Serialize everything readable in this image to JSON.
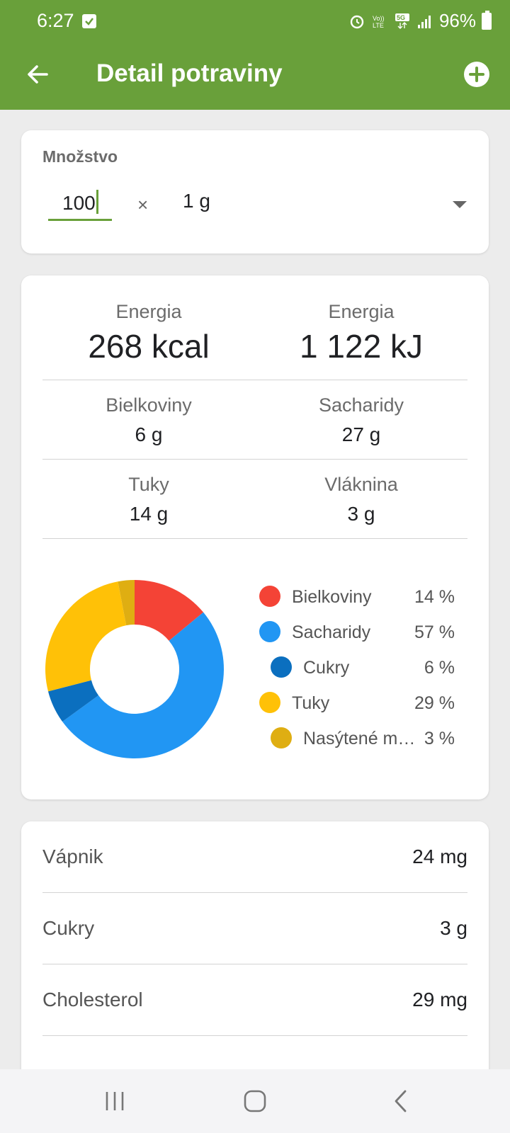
{
  "status": {
    "time": "6:27",
    "battery": "96%"
  },
  "appbar": {
    "title": "Detail potraviny"
  },
  "quantity": {
    "label": "Množstvo",
    "value": "100",
    "times": "×",
    "unit": "1 g"
  },
  "summary": {
    "energy_kcal_label": "Energia",
    "energy_kcal": "268 kcal",
    "energy_kj_label": "Energia",
    "energy_kj": "1 122 kJ",
    "protein_label": "Bielkoviny",
    "protein": "6 g",
    "carbs_label": "Sacharidy",
    "carbs": "27 g",
    "fat_label": "Tuky",
    "fat": "14 g",
    "fiber_label": "Vláknina",
    "fiber": "3 g"
  },
  "legend": [
    {
      "name": "Bielkoviny",
      "pct": "14 %",
      "color": "#f44336",
      "indent": false
    },
    {
      "name": "Sacharidy",
      "pct": "57 %",
      "color": "#2196f3",
      "indent": false
    },
    {
      "name": "Cukry",
      "pct": "6 %",
      "color": "#0b6fbf",
      "indent": true
    },
    {
      "name": "Tuky",
      "pct": "29 %",
      "color": "#ffc107",
      "indent": false
    },
    {
      "name": "Nasýtené m…",
      "pct": "3 %",
      "color": "#dfae12",
      "indent": true
    }
  ],
  "chart_data": {
    "type": "pie",
    "categories": [
      "Bielkoviny",
      "Sacharidy",
      "Cukry",
      "Tuky",
      "Nasýtené m…"
    ],
    "values": [
      14,
      57,
      6,
      29,
      3
    ],
    "colors": [
      "#f44336",
      "#2196f3",
      "#0b6fbf",
      "#ffc107",
      "#dfae12"
    ],
    "donut": true
  },
  "details": [
    {
      "name": "Vápnik",
      "value": "24 mg"
    },
    {
      "name": "Cukry",
      "value": "3 g"
    },
    {
      "name": "Cholesterol",
      "value": "29 mg"
    }
  ],
  "colors": {
    "primary": "#69a03a"
  }
}
